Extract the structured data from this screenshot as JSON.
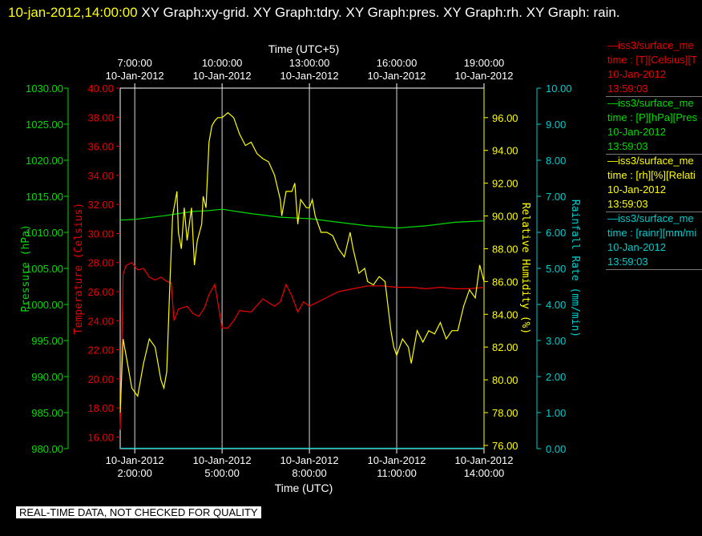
{
  "header": {
    "timestamp": "10-jan-2012,14:00:00",
    "titles": "XY Graph:xy-grid.  XY Graph:tdry.  XY Graph:pres.  XY Graph:rh.  XY Graph: rain."
  },
  "footer": {
    "notice": "REAL-TIME DATA, NOT CHECKED FOR QUALITY"
  },
  "colors": {
    "background": "#000000",
    "pressure": "#00dd00",
    "temperature": "#ee0000",
    "humidity": "#ffff00",
    "rain": "#00cccc",
    "grid": "#d8d8d8"
  },
  "chart_data": {
    "type": "line",
    "x_bottom": {
      "label": "Time (UTC)",
      "range": [
        "10-Jan-2012 01:30",
        "10-Jan-2012 14:00"
      ],
      "ticks": [
        {
          "date": "10-Jan-2012",
          "time": "2:00:00"
        },
        {
          "date": "10-Jan-2012",
          "time": "5:00:00"
        },
        {
          "date": "10-Jan-2012",
          "time": "8:00:00"
        },
        {
          "date": "10-Jan-2012",
          "time": "11:00:00"
        },
        {
          "date": "10-Jan-2012",
          "time": "14:00:00"
        }
      ]
    },
    "x_top": {
      "label": "Time (UTC+5)",
      "ticks": [
        {
          "date": "10-Jan-2012",
          "time": "7:00:00"
        },
        {
          "date": "10-Jan-2012",
          "time": "10:00:00"
        },
        {
          "date": "10-Jan-2012",
          "time": "13:00:00"
        },
        {
          "date": "10-Jan-2012",
          "time": "16:00:00"
        },
        {
          "date": "10-Jan-2012",
          "time": "19:00:00"
        }
      ]
    },
    "axes": {
      "pressure": {
        "label": "Pressure (hPa)",
        "ylim": [
          980,
          1030
        ],
        "ticks": [
          "980.00",
          "985.00",
          "990.00",
          "995.00",
          "1000.00",
          "1005.00",
          "1010.00",
          "1015.00",
          "1020.00",
          "1025.00",
          "1030.00"
        ]
      },
      "temperature": {
        "label": "Temperature (Celsius)",
        "ylim": [
          15.2,
          40
        ],
        "ticks": [
          "16.00",
          "18.00",
          "20.00",
          "22.00",
          "24.00",
          "26.00",
          "28.00",
          "30.00",
          "32.00",
          "34.00",
          "36.00",
          "38.00",
          "40.00"
        ]
      },
      "humidity": {
        "label": "Relative Humidity (%)",
        "ylim": [
          75.8,
          97.8
        ],
        "ticks": [
          "76.00",
          "78.00",
          "80.00",
          "82.00",
          "84.00",
          "86.00",
          "88.00",
          "90.00",
          "92.00",
          "94.00",
          "96.00"
        ]
      },
      "rain": {
        "label": "Rainfall Rate (mm/min)",
        "ylim": [
          0,
          10
        ],
        "ticks": [
          "0.00",
          "1.00",
          "2.00",
          "3.00",
          "4.00",
          "5.00",
          "6.00",
          "7.00",
          "8.00",
          "9.00",
          "10.00"
        ]
      }
    },
    "grid": true,
    "legend_position": "right",
    "series": [
      {
        "name": "iss3/surface_me",
        "axis": "temperature",
        "legend": [
          "—iss3/surface_me",
          "time : [T][Celsius][T",
          "10-Jan-2012",
          "13:59:03"
        ],
        "x": [
          1.5,
          1.6,
          1.7,
          1.9,
          2.1,
          2.3,
          2.5,
          2.7,
          2.9,
          3.1,
          3.25,
          3.35,
          3.5,
          3.8,
          4.0,
          4.2,
          4.4,
          4.55,
          4.75,
          5.0,
          5.2,
          5.4,
          5.6,
          6.0,
          6.4,
          6.8,
          7.0,
          7.2,
          7.4,
          7.6,
          7.8,
          8.0,
          8.5,
          9.0,
          9.5,
          10.0,
          10.5,
          11.0,
          11.5,
          12.0,
          12.5,
          13.0,
          13.5,
          14.0
        ],
        "values": [
          16.5,
          27.2,
          27.8,
          28.0,
          27.5,
          27.6,
          27.0,
          26.8,
          27.0,
          26.7,
          26.6,
          24.0,
          24.8,
          25.0,
          24.5,
          24.3,
          24.9,
          25.8,
          26.5,
          23.5,
          23.5,
          24.0,
          24.7,
          24.6,
          25.5,
          25.0,
          25.3,
          26.5,
          25.7,
          24.6,
          25.3,
          25.0,
          25.5,
          26.0,
          26.2,
          26.4,
          26.4,
          26.3,
          26.3,
          26.2,
          26.3,
          26.2,
          26.2,
          26.3
        ]
      },
      {
        "name": "iss3/surface_me",
        "axis": "pressure",
        "legend": [
          "—iss3/surface_me",
          "time : [P][hPa][Pres",
          "10-Jan-2012",
          "13:59:03"
        ],
        "x": [
          1.5,
          2.0,
          3.0,
          4.0,
          4.5,
          5.0,
          6.0,
          7.0,
          8.0,
          9.0,
          10.0,
          11.0,
          12.0,
          13.0,
          14.0
        ],
        "values": [
          1011.7,
          1011.8,
          1012.3,
          1012.9,
          1013.0,
          1013.2,
          1012.6,
          1012.1,
          1011.9,
          1011.4,
          1010.9,
          1010.6,
          1010.9,
          1011.4,
          1011.6
        ]
      },
      {
        "name": "iss3/surface_me",
        "axis": "humidity",
        "legend": [
          "—iss3/surface_me",
          "time : [rh][%][Relati",
          "10-Jan-2012",
          "13:59:03"
        ],
        "x": [
          1.5,
          1.6,
          1.75,
          1.9,
          2.1,
          2.3,
          2.5,
          2.7,
          2.9,
          3.0,
          3.1,
          3.2,
          3.3,
          3.45,
          3.5,
          3.6,
          3.7,
          3.8,
          3.95,
          4.05,
          4.15,
          4.3,
          4.35,
          4.45,
          4.55,
          4.65,
          4.75,
          4.85,
          5.0,
          5.2,
          5.4,
          5.6,
          5.8,
          6.0,
          6.2,
          6.4,
          6.6,
          6.8,
          7.0,
          7.05,
          7.2,
          7.4,
          7.5,
          7.6,
          7.7,
          7.9,
          8.0,
          8.1,
          8.2,
          8.4,
          8.6,
          8.8,
          9.0,
          9.2,
          9.4,
          9.5,
          9.7,
          9.9,
          10.0,
          10.2,
          10.4,
          10.6,
          10.8,
          10.9,
          11.0,
          11.2,
          11.4,
          11.5,
          11.7,
          11.9,
          12.1,
          12.3,
          12.5,
          12.7,
          12.9,
          13.1,
          13.3,
          13.5,
          13.7,
          13.85,
          14.0
        ],
        "values": [
          78,
          82.5,
          81.0,
          79.5,
          79.0,
          81.0,
          82.5,
          82.0,
          80.0,
          79.5,
          80.5,
          85.5,
          90.0,
          91.5,
          89.0,
          88.0,
          90.5,
          88.5,
          90.5,
          87.0,
          88.5,
          89.5,
          91.2,
          90.5,
          94.5,
          95.5,
          95.8,
          96.0,
          96.0,
          96.3,
          96.0,
          95.0,
          94.3,
          94.5,
          93.8,
          93.5,
          93.3,
          92.5,
          91.0,
          90.0,
          91.5,
          91.5,
          92.0,
          89.5,
          91.0,
          90.5,
          90.5,
          91.0,
          90.0,
          89.0,
          89.0,
          88.8,
          88.0,
          87.5,
          89.0,
          88.0,
          86.5,
          86.8,
          86.0,
          85.8,
          86.3,
          86.0,
          83.0,
          82.0,
          81.5,
          82.5,
          82.0,
          81.0,
          83.0,
          82.3,
          83.0,
          82.8,
          83.5,
          82.5,
          83.0,
          83.0,
          84.5,
          85.5,
          85.0,
          87.0,
          86.0
        ]
      },
      {
        "name": "iss3/surface_me",
        "axis": "rain",
        "legend": [
          "—iss3/surface_me",
          "time : [rainr][mm/mi",
          "10-Jan-2012",
          "13:59:03"
        ],
        "x": [
          1.5,
          14.0
        ],
        "values": [
          0.01,
          0.01
        ]
      }
    ]
  }
}
